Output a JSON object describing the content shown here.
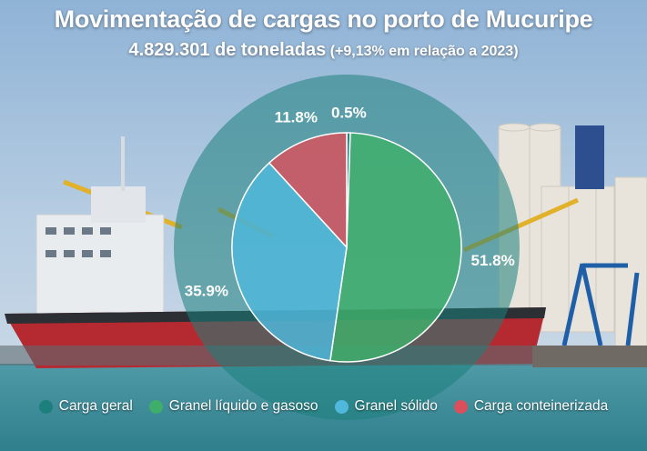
{
  "title": "Movimentação de cargas no porto de Mucuripe",
  "subtitle": {
    "main": "4.829.301 de toneladas",
    "note": "(+9,13% em relação a 2023)"
  },
  "chart_data": {
    "type": "pie",
    "variant": "donut",
    "categories": [
      "Carga geral",
      "Granel líquido e gasoso",
      "Granel sólido",
      "Carga conteinerizada"
    ],
    "values": [
      0.5,
      51.8,
      35.9,
      11.8
    ],
    "labels": [
      "0.5%",
      "51.8%",
      "35.9%",
      "11.8%"
    ],
    "colors": [
      "#1c7f7b",
      "#3fae6a",
      "#4fb8dc",
      "#d9505c"
    ],
    "legend_position": "bottom"
  },
  "legend": {
    "items": [
      {
        "label": "Carga geral",
        "color": "#1c7f7b"
      },
      {
        "label": "Granel líquido e gasoso",
        "color": "#3fae6a"
      },
      {
        "label": "Granel sólido",
        "color": "#4fb8dc"
      },
      {
        "label": "Carga conteinerizada",
        "color": "#d9505c"
      }
    ]
  }
}
